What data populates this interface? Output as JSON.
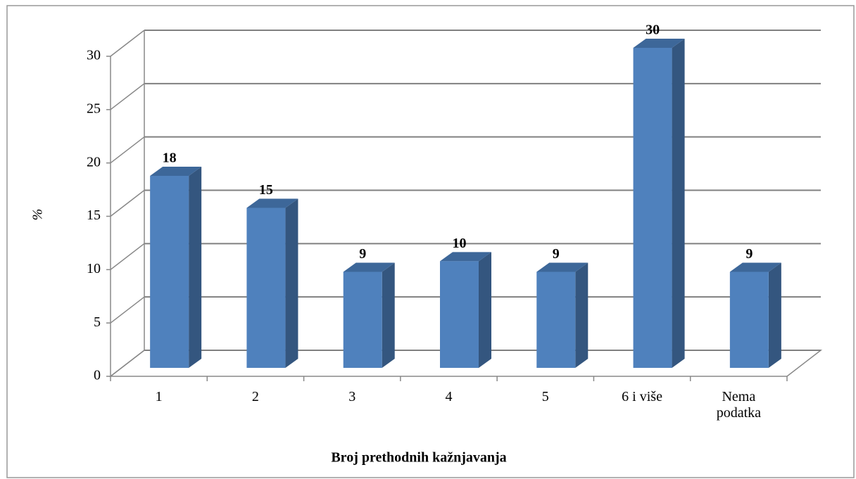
{
  "chart_data": {
    "type": "bar3d",
    "y_label": "%",
    "x_label": "Broj prethodnih kažnjavanja",
    "categories": [
      "1",
      "2",
      "3",
      "4",
      "5",
      "6 i više",
      "Nema podatka"
    ],
    "values": [
      18,
      15,
      9,
      10,
      9,
      30,
      9
    ],
    "color": "#4f81bd",
    "ylim": [
      0,
      30
    ],
    "yticks": [
      0,
      5,
      10,
      15,
      20,
      25,
      30
    ],
    "grid": true
  }
}
